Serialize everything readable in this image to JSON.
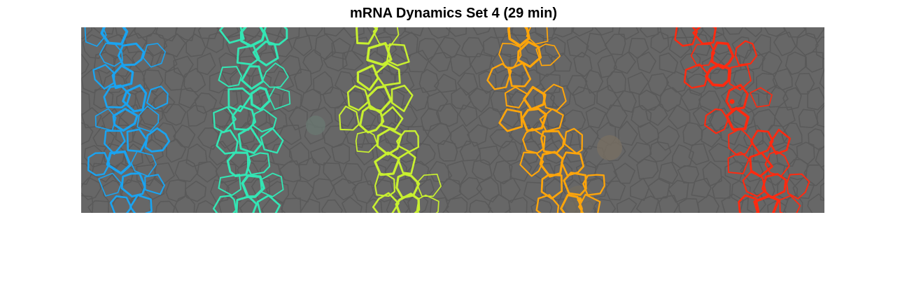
{
  "figure": {
    "title": "mRNA Dynamics Set 4 (29 min)"
  },
  "image_panel": {
    "background_color": "#676767",
    "tissue_outline_color": "#5a5a5a",
    "stripes": [
      {
        "name": "stripe-1",
        "color": "#1aa3f0"
      },
      {
        "name": "stripe-2",
        "color": "#33e6b4"
      },
      {
        "name": "stripe-3",
        "color": "#c8f030"
      },
      {
        "name": "stripe-4",
        "color": "#ffa50a"
      },
      {
        "name": "stripe-5",
        "color": "#ff2a10"
      }
    ],
    "spots": [
      {
        "stripe": "stripe-4",
        "color": "#ffa50a"
      },
      {
        "stripe": "stripe-5",
        "color": "#ff2a10"
      }
    ]
  }
}
